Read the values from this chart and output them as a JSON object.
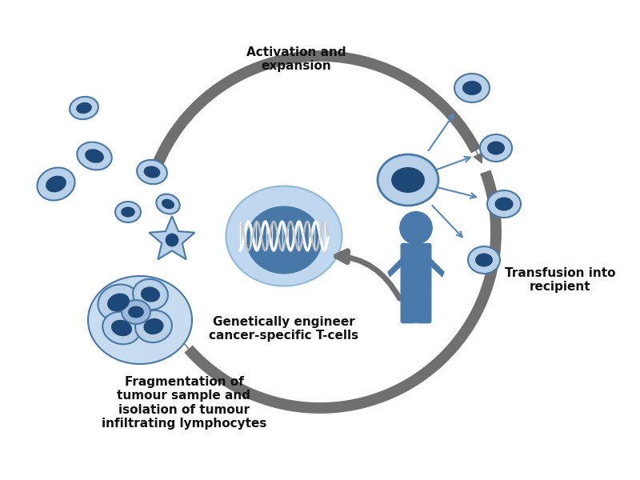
{
  "bg_color": "#ffffff",
  "arrow_color": "#707070",
  "cell_light": "#b8d0e8",
  "cell_mid": "#6090b8",
  "cell_dark": "#1e4878",
  "cell_edge": "#4878a8",
  "human_color": "#4a7aab",
  "dna_outer": "#c0d8ef",
  "dna_inner": "#4878a8",
  "dna_core": "#1e3a6a",
  "tumor_light": "#9abcd8",
  "tumor_dark": "#1a3e70",
  "blue_arrow": "#5588bb",
  "labels": {
    "activation": "Activation and\nexpansion",
    "transfusion": "Transfusion into\nrecipient",
    "genetic": "Genetically engineer\ncancer-specific T-cells",
    "fragmentation": "Fragmentation of\ntumour sample and\nisolation of tumour\ninfiltrating lymphocytes"
  }
}
